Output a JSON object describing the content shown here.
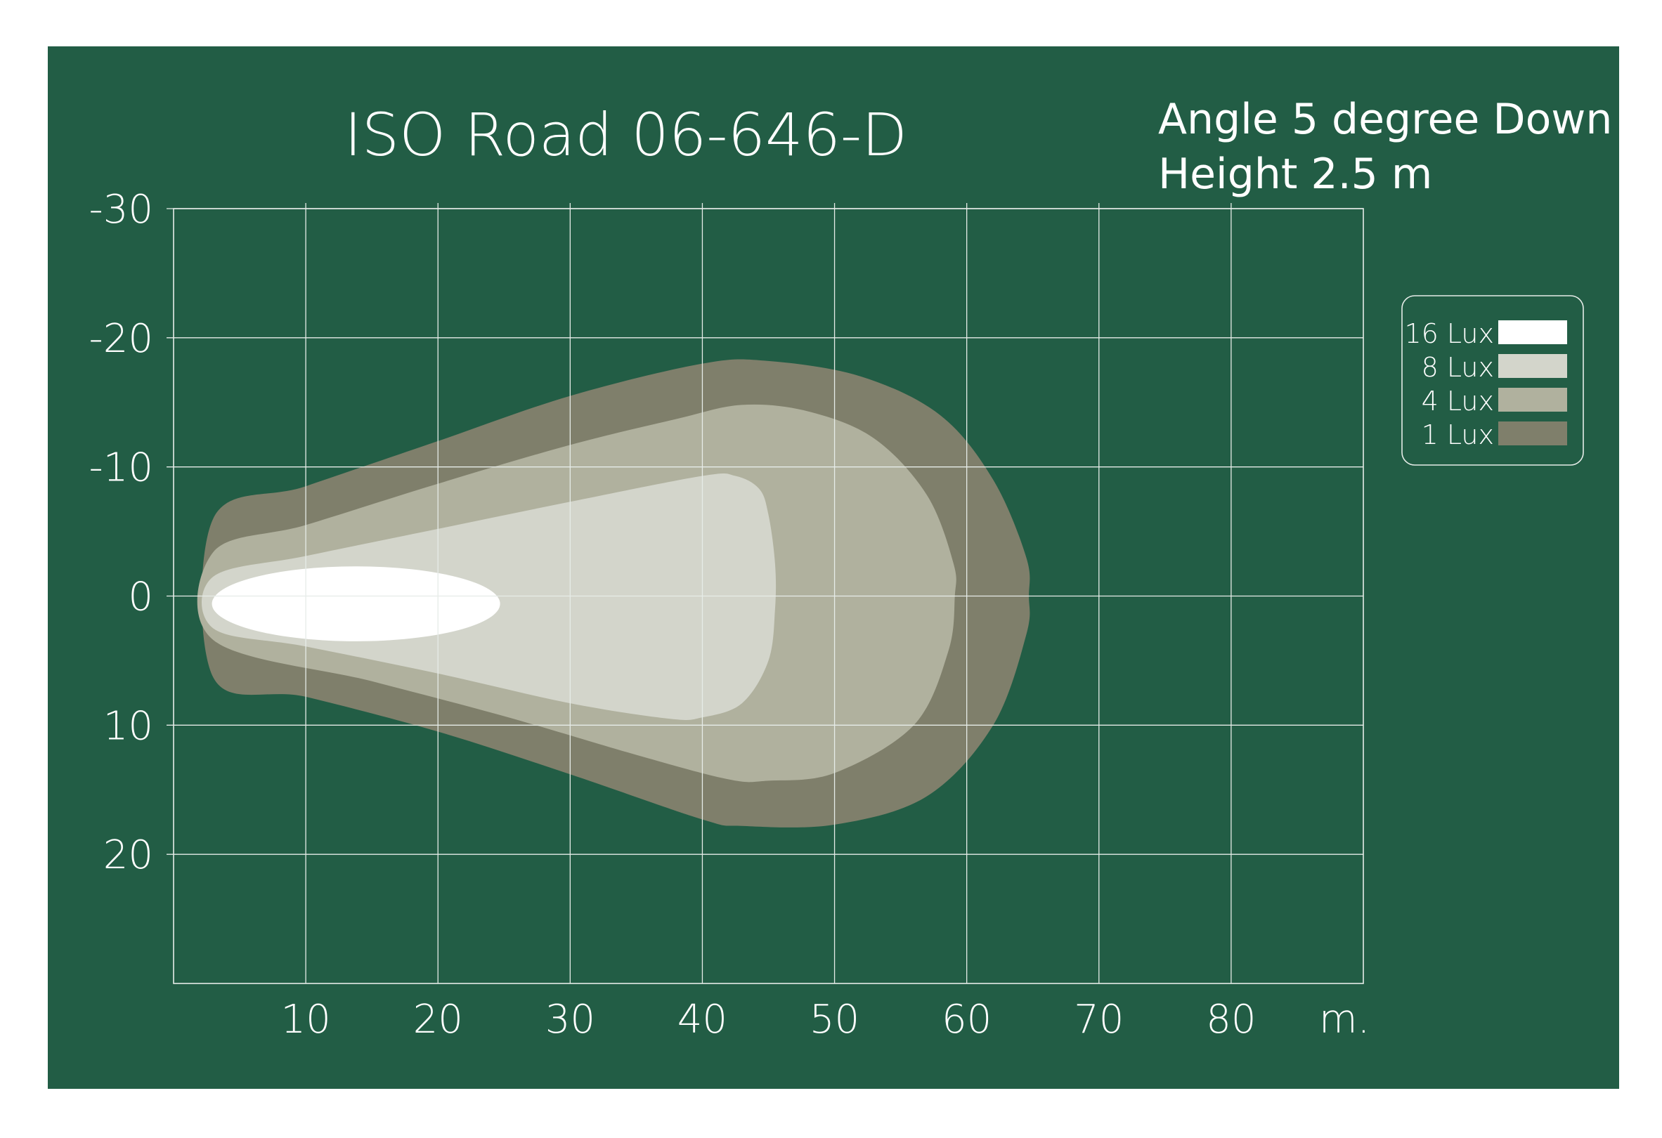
{
  "title": "ISO Road  06-646-D",
  "info": {
    "line1": "Angle 5 degree Down",
    "line2": "Height 2.5 m"
  },
  "colors": {
    "background": "#225d45",
    "lux_16": "#ffffff",
    "lux_8": "#d3d5cb",
    "lux_4": "#b0b19e",
    "lux_1": "#7f7f6b"
  },
  "chart_data": {
    "type": "isolux-contour",
    "title": "ISO Road  06-646-D",
    "xlabel": "m.",
    "ylabel": "",
    "xlim": [
      0,
      90
    ],
    "ylim": [
      -30,
      30
    ],
    "y_inverted": true,
    "grid": true,
    "x_ticks": [
      10,
      20,
      30,
      40,
      50,
      60,
      70,
      80
    ],
    "x_tick_labels": [
      "10",
      "20",
      "30",
      "40",
      "50",
      "60",
      "70",
      "80"
    ],
    "y_ticks": [
      -30,
      -20,
      -10,
      0,
      10,
      20
    ],
    "y_tick_labels": [
      "-30",
      "-20",
      "-10",
      "0",
      "10",
      "20"
    ],
    "legend": {
      "placement": "right",
      "entries": [
        {
          "label": "16 Lux",
          "color": "#ffffff"
        },
        {
          "label": "8 Lux",
          "color": "#d3d5cb"
        },
        {
          "label": "4 Lux",
          "color": "#b0b19e"
        },
        {
          "label": "1 Lux",
          "color": "#7f7f6b"
        }
      ]
    },
    "contours": [
      {
        "level": "1 Lux",
        "color": "#7f7f6b",
        "points": [
          [
            3,
            -6
          ],
          [
            10,
            -8.5
          ],
          [
            20,
            -12
          ],
          [
            30,
            -15.5
          ],
          [
            40,
            -18
          ],
          [
            45,
            -18.2
          ],
          [
            52,
            -17
          ],
          [
            58,
            -14
          ],
          [
            62,
            -9
          ],
          [
            64.5,
            -3
          ],
          [
            64.7,
            0
          ],
          [
            64.5,
            3
          ],
          [
            62,
            10
          ],
          [
            57,
            15.5
          ],
          [
            50,
            17.7
          ],
          [
            43,
            17.8
          ],
          [
            40,
            17.3
          ],
          [
            30,
            13.8
          ],
          [
            20,
            10.5
          ],
          [
            10,
            7.8
          ],
          [
            3,
            6.3
          ]
        ]
      },
      {
        "level": "4 Lux",
        "color": "#b0b19e",
        "points": [
          [
            3,
            -3.4
          ],
          [
            10,
            -5.5
          ],
          [
            20,
            -8.7
          ],
          [
            30,
            -11.7
          ],
          [
            38,
            -13.7
          ],
          [
            43,
            -14.8
          ],
          [
            48,
            -14.3
          ],
          [
            53,
            -12.2
          ],
          [
            57,
            -7.8
          ],
          [
            59,
            -2.5
          ],
          [
            59.1,
            0
          ],
          [
            58.6,
            4.3
          ],
          [
            56,
            10
          ],
          [
            50,
            13.7
          ],
          [
            45,
            14.3
          ],
          [
            42,
            14.2
          ],
          [
            35,
            12.3
          ],
          [
            25,
            9.3
          ],
          [
            15,
            6.6
          ],
          [
            3,
            3.4
          ]
        ]
      },
      {
        "level": "8 Lux",
        "color": "#d3d5cb",
        "points": [
          [
            3,
            -1.5
          ],
          [
            10,
            -3.1
          ],
          [
            20,
            -5.2
          ],
          [
            30,
            -7.3
          ],
          [
            40,
            -9.3
          ],
          [
            42.5,
            -9.3
          ],
          [
            44.3,
            -8.3
          ],
          [
            45,
            -6.3
          ],
          [
            45.5,
            -2.5
          ],
          [
            45.5,
            1
          ],
          [
            45,
            5
          ],
          [
            43,
            8.3
          ],
          [
            40,
            9.4
          ],
          [
            37.5,
            9.5
          ],
          [
            30,
            8.3
          ],
          [
            20,
            6
          ],
          [
            10,
            3.9
          ],
          [
            3,
            2.5
          ]
        ]
      },
      {
        "level": "16 Lux",
        "color": "#ffffff",
        "ellipse": {
          "cx": 13.8,
          "cy": 0.6,
          "rx": 10.9,
          "ry": 2.9
        }
      }
    ]
  }
}
